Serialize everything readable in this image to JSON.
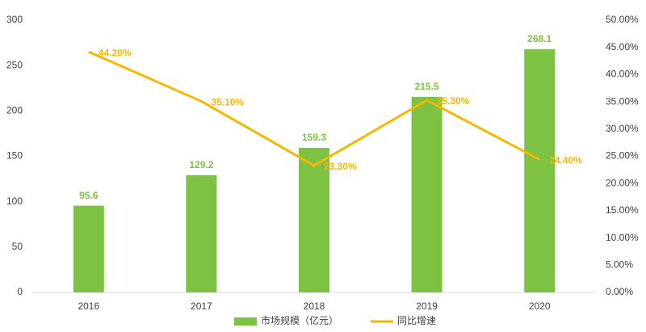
{
  "chart_data": {
    "type": "bar-line",
    "categories": [
      "2016",
      "2017",
      "2018",
      "2019",
      "2020"
    ],
    "series": [
      {
        "name": "市场规模（亿元）",
        "color": "#7dc242",
        "type": "bar",
        "values": [
          95.6,
          129.2,
          159.3,
          215.5,
          268.1
        ]
      },
      {
        "name": "同比增速",
        "color": "#f5b800",
        "type": "line",
        "axis": "y2",
        "values": [
          44.2,
          35.1,
          23.3,
          35.3,
          24.4
        ],
        "value_labels": [
          "44.20%",
          "35.10%",
          "23.30%",
          "35.30%",
          "24.40%"
        ]
      }
    ],
    "ylim": [
      0,
      300
    ],
    "yticks": [
      0,
      50,
      100,
      150,
      200,
      250,
      300
    ],
    "y2lim": [
      0,
      50
    ],
    "y2ticks": [
      {
        "value": 0,
        "label": "0.00%"
      },
      {
        "value": 5,
        "label": "5.00%"
      },
      {
        "value": 10,
        "label": "10.00%"
      },
      {
        "value": 15,
        "label": "15.00%"
      },
      {
        "value": 20,
        "label": "20.00%"
      },
      {
        "value": 25,
        "label": "25.00%"
      },
      {
        "value": 30,
        "label": "30.00%"
      },
      {
        "value": 35,
        "label": "35.00%"
      },
      {
        "value": 40,
        "label": "40.00%"
      },
      {
        "value": 45,
        "label": "45.00%"
      },
      {
        "value": 50,
        "label": "50.00%"
      }
    ],
    "legend": "bottom",
    "grid": false
  }
}
